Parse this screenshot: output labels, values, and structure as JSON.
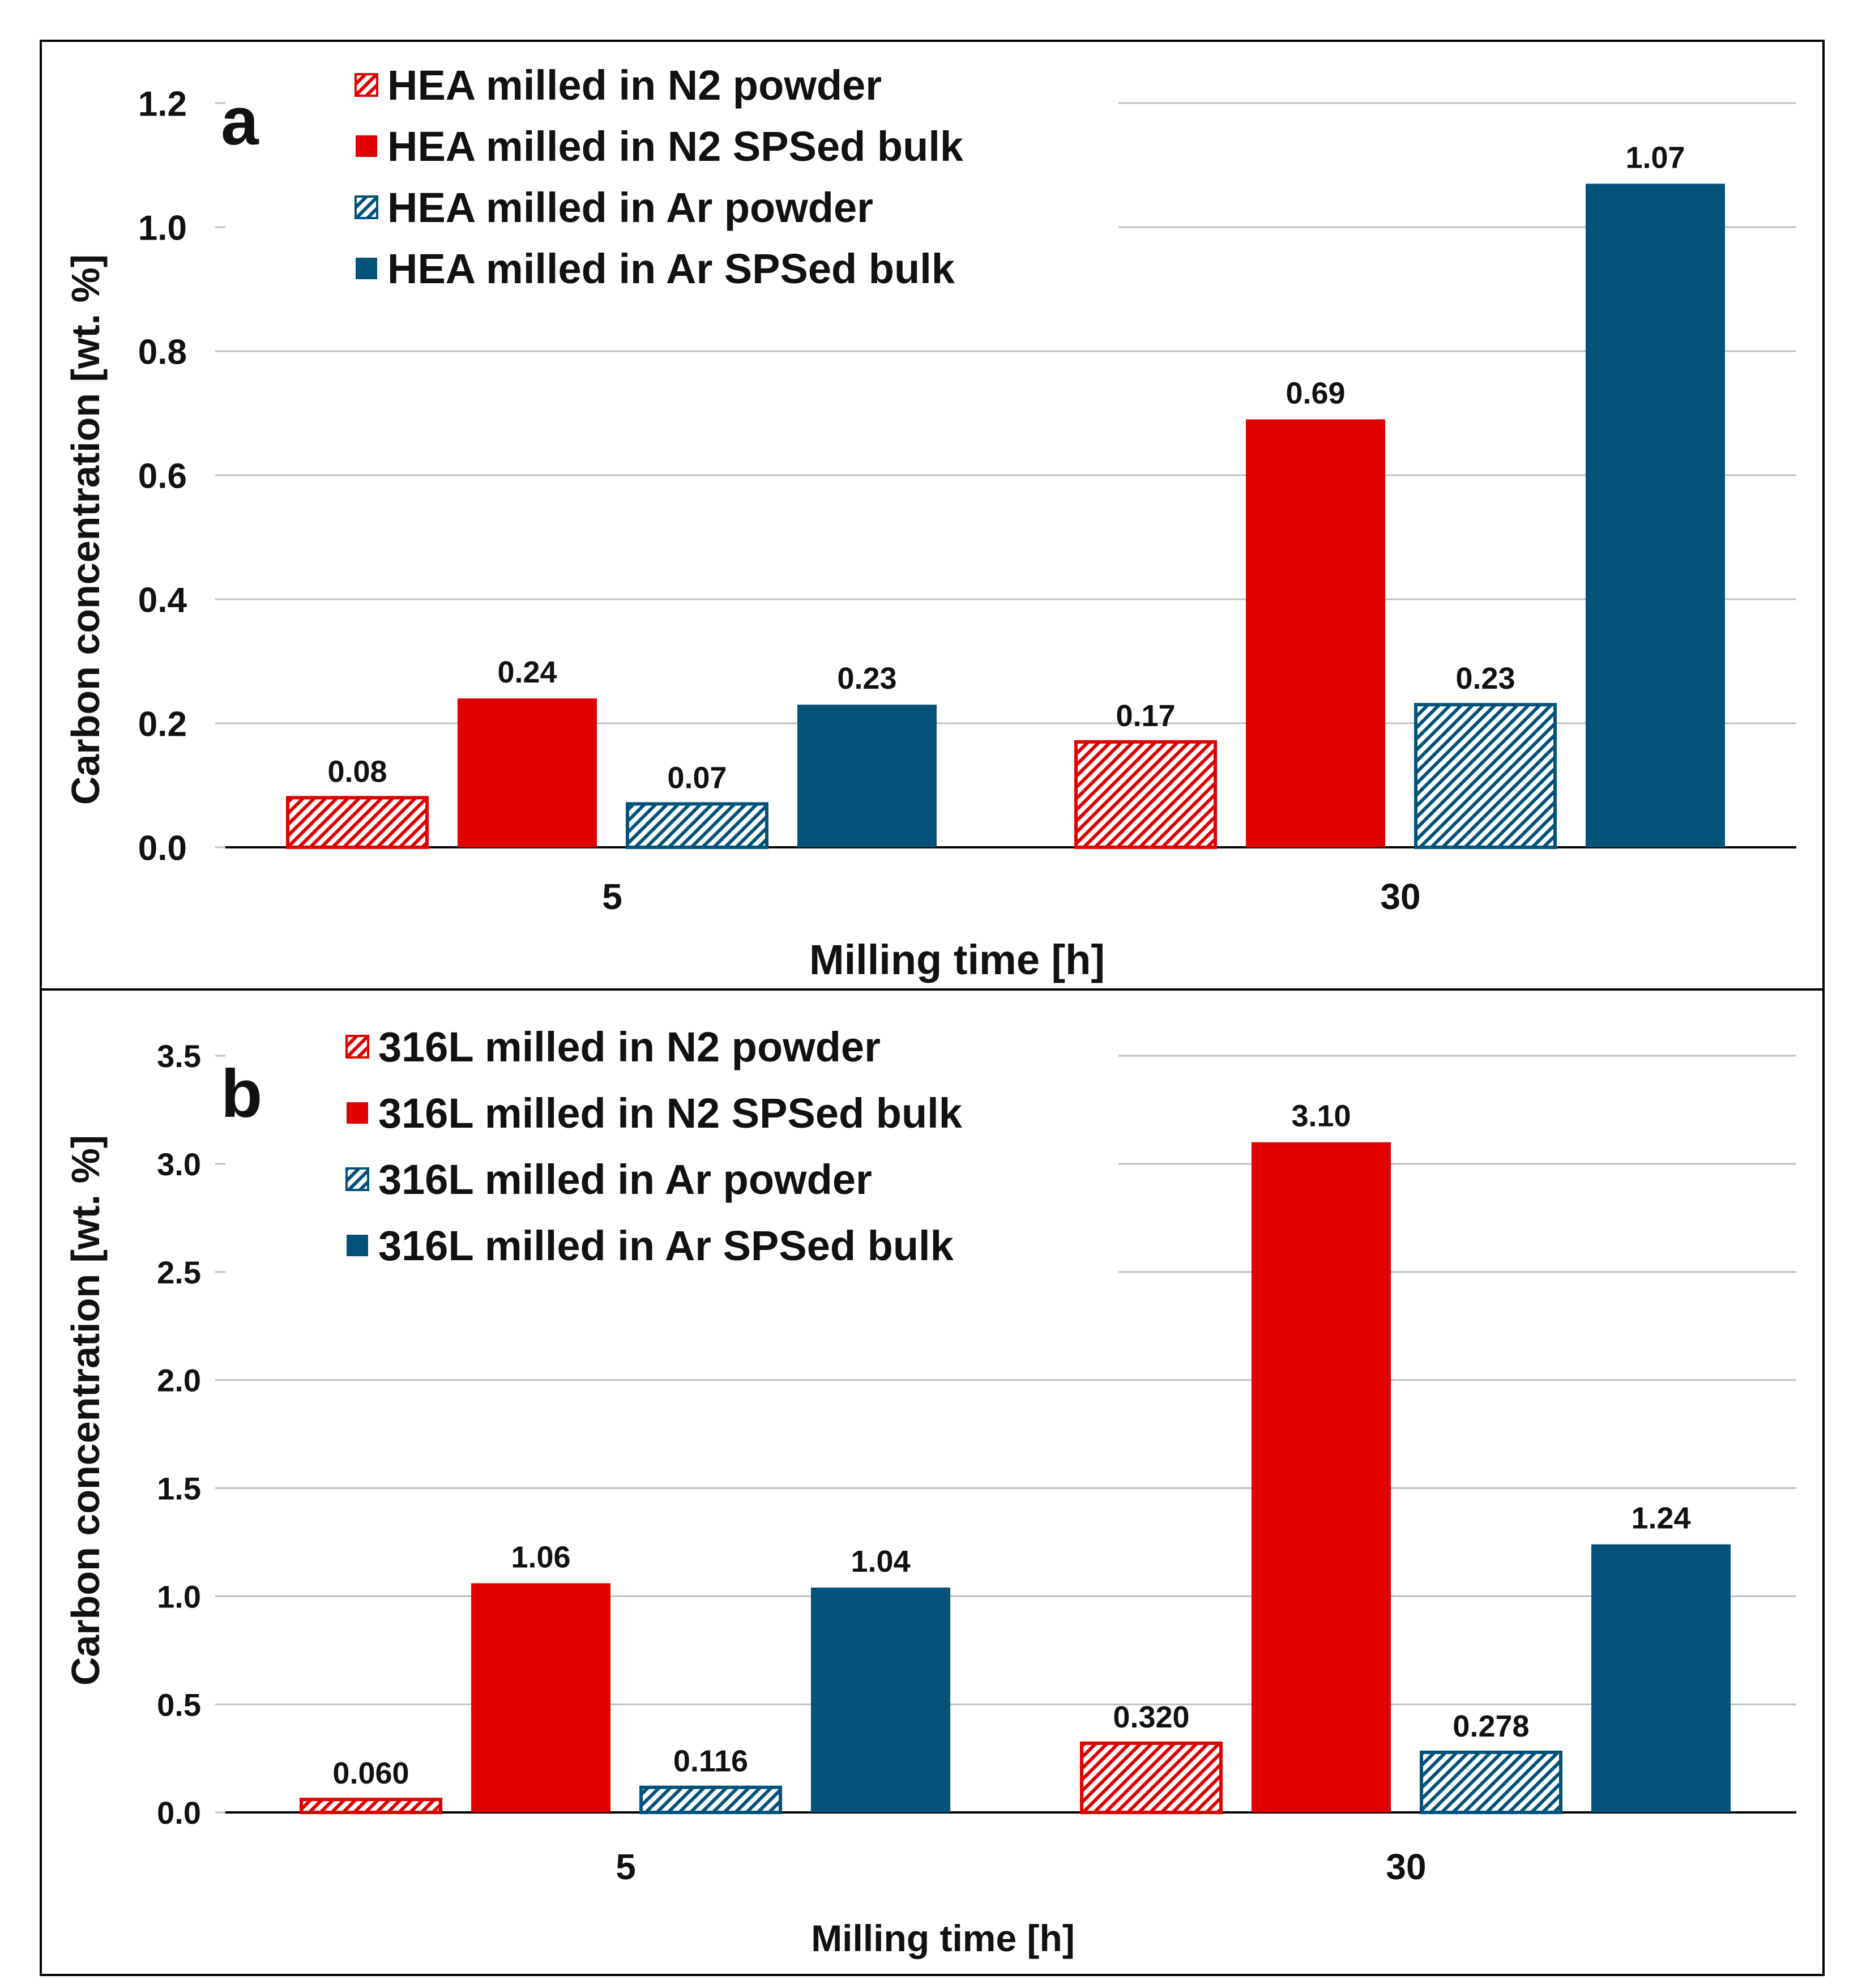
{
  "colors": {
    "red": "#E00000",
    "blue": "#02527A",
    "grid": "#BFBFBF",
    "axis": "#000000",
    "frame": "#000000"
  },
  "chart_data": [
    {
      "type": "bar",
      "panel_label": "a",
      "categories": [
        "5",
        "30"
      ],
      "xlabel": "Milling time [h]",
      "ylabel": "Carbon concentration  [wt. %]",
      "ylim": [
        0,
        1.2
      ],
      "yticks": [
        "0.0",
        "0.2",
        "0.4",
        "0.6",
        "0.8",
        "1.0",
        "1.2"
      ],
      "ytick_values": [
        0,
        0.2,
        0.4,
        0.6,
        0.8,
        1.0,
        1.2
      ],
      "grid": true,
      "legend": "top-left",
      "series": [
        {
          "name": "HEA milled in N2 powder",
          "color": "red",
          "hatched": true,
          "values": [
            0.08,
            0.17
          ],
          "labels": [
            "0.08",
            "0.17"
          ]
        },
        {
          "name": "HEA milled in N2 SPSed bulk",
          "color": "red",
          "hatched": false,
          "values": [
            0.24,
            0.69
          ],
          "labels": [
            "0.24",
            "0.69"
          ]
        },
        {
          "name": "HEA milled in Ar powder",
          "color": "blue",
          "hatched": true,
          "values": [
            0.07,
            0.23
          ],
          "labels": [
            "0.07",
            "0.23"
          ]
        },
        {
          "name": "HEA milled in Ar SPSed bulk",
          "color": "blue",
          "hatched": false,
          "values": [
            0.23,
            1.07
          ],
          "labels": [
            "0.23",
            "1.07"
          ]
        }
      ]
    },
    {
      "type": "bar",
      "panel_label": "b",
      "categories": [
        "5",
        "30"
      ],
      "xlabel": "Milling time  [h]",
      "ylabel": "Carbon concentration  [wt. %]",
      "ylim": [
        0,
        3.5
      ],
      "yticks": [
        "0.0",
        "0.5",
        "1.0",
        "1.5",
        "2.0",
        "2.5",
        "3.0",
        "3.5"
      ],
      "ytick_values": [
        0,
        0.5,
        1.0,
        1.5,
        2.0,
        2.5,
        3.0,
        3.5
      ],
      "grid": true,
      "legend": "top-left",
      "series": [
        {
          "name": "316L milled in N2 powder",
          "color": "red",
          "hatched": true,
          "values": [
            0.06,
            0.32
          ],
          "labels": [
            "0.060",
            "0.320"
          ]
        },
        {
          "name": "316L milled in N2 SPSed bulk",
          "color": "red",
          "hatched": false,
          "values": [
            1.06,
            3.1
          ],
          "labels": [
            "1.06",
            "3.10"
          ]
        },
        {
          "name": "316L milled in Ar powder",
          "color": "blue",
          "hatched": true,
          "values": [
            0.116,
            0.278
          ],
          "labels": [
            "0.116",
            "0.278"
          ]
        },
        {
          "name": "316L milled in Ar SPSed bulk",
          "color": "blue",
          "hatched": false,
          "values": [
            1.04,
            1.24
          ],
          "labels": [
            "1.04",
            "1.24"
          ]
        }
      ]
    }
  ]
}
